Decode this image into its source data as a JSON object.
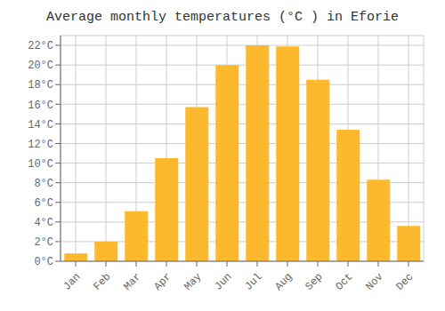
{
  "chart_data": {
    "type": "bar",
    "title": "Average monthly temperatures (°C ) in Eforie",
    "categories": [
      "Jan",
      "Feb",
      "Mar",
      "Apr",
      "May",
      "Jun",
      "Jul",
      "Aug",
      "Sep",
      "Oct",
      "Nov",
      "Dec"
    ],
    "values": [
      0.8,
      2.0,
      5.1,
      10.5,
      15.7,
      20.0,
      22.0,
      21.9,
      18.5,
      13.4,
      8.3,
      3.6
    ],
    "color": "#FDB92E",
    "ylim": [
      0,
      23.0
    ],
    "yticks": [
      {
        "value": 0,
        "label": "0°C"
      },
      {
        "value": 2,
        "label": "2°C"
      },
      {
        "value": 4,
        "label": "4°C"
      },
      {
        "value": 6,
        "label": "6°C"
      },
      {
        "value": 8,
        "label": "8°C"
      },
      {
        "value": 10,
        "label": "10°C"
      },
      {
        "value": 12,
        "label": "12°C"
      },
      {
        "value": 14,
        "label": "14°C"
      },
      {
        "value": 16,
        "label": "16°C"
      },
      {
        "value": 18,
        "label": "18°C"
      },
      {
        "value": 20,
        "label": "20°C"
      },
      {
        "value": 22,
        "label": "22°C"
      }
    ],
    "grid": true
  }
}
